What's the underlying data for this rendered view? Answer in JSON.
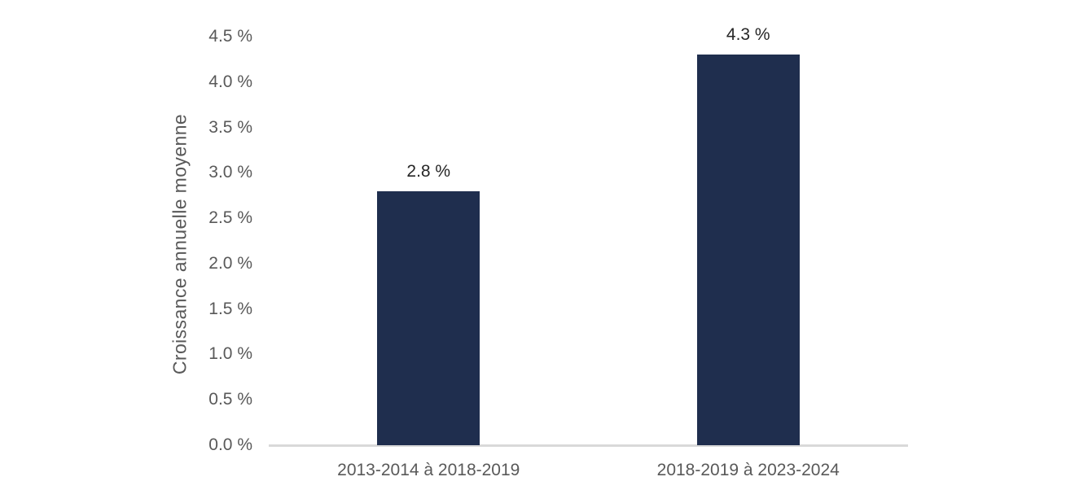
{
  "chart_data": {
    "type": "bar",
    "categories": [
      "2013-2014 à 2018-2019",
      "2018-2019 à 2023-2024"
    ],
    "values": [
      2.8,
      4.3
    ],
    "value_labels": [
      "2.8 %",
      "4.3 %"
    ],
    "title": "",
    "xlabel": "",
    "ylabel": "Croissance annuelle moyenne",
    "ylim": [
      0,
      4.5
    ],
    "ytick_step": 0.5,
    "yticks": [
      0,
      0.5,
      1.0,
      1.5,
      2.0,
      2.5,
      3.0,
      3.5,
      4.0,
      4.5
    ],
    "ytick_labels": [
      "0.0 %",
      "0.5 %",
      "1.0 %",
      "1.5 %",
      "2.0 %",
      "2.5 %",
      "3.0 %",
      "3.5 %",
      "4.0 %",
      "4.5 %"
    ],
    "grid": false,
    "legend": false,
    "colors": {
      "bar": "#1F2E4E",
      "axis_line": "#D9D9D9",
      "tick_label": "#595959",
      "category_label": "#595959",
      "data_label": "#262626",
      "background": "#FFFFFF"
    }
  }
}
